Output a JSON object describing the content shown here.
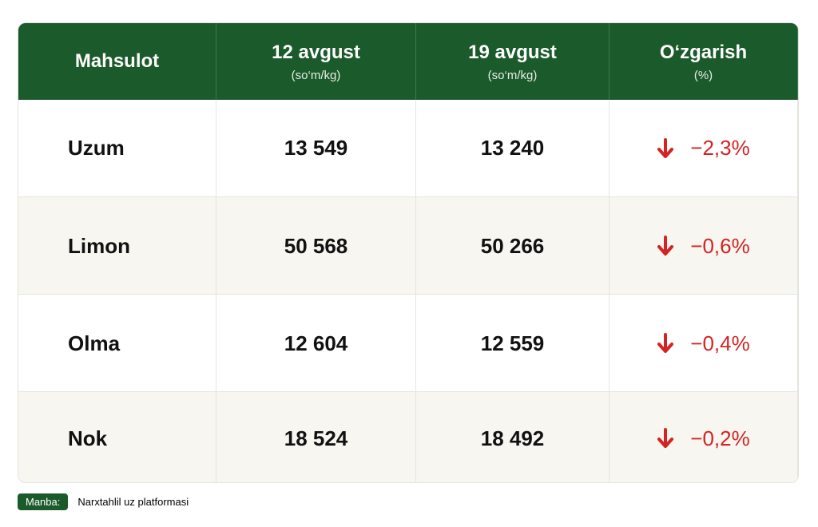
{
  "table": {
    "header": [
      {
        "title": "Mahsulot"
      },
      {
        "title": "12 avgust",
        "subtitle": "(so‘m/kg)"
      },
      {
        "title": "19 avgust",
        "subtitle": "(so‘m/kg)"
      },
      {
        "title": "O‘zgarish",
        "subtitle": "(%)"
      }
    ],
    "rows": [
      [
        "Uzum",
        "13 549",
        "13 240",
        "−2,3%"
      ],
      [
        "Limon",
        "50 568",
        "50 266",
        "−0,6%"
      ],
      [
        "Olma",
        "12 604",
        "12 559",
        "−0,4%"
      ],
      [
        "Nok",
        "18 524",
        "18 492",
        "−0,2%"
      ]
    ]
  },
  "source": {
    "label": "Manba:",
    "text": "Narxtahlil uz platformasi"
  }
}
